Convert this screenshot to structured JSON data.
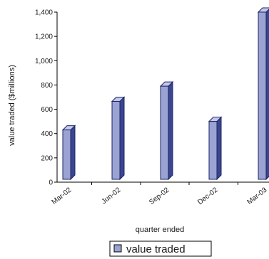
{
  "colors": {
    "bar_front": "#9aa3d2",
    "bar_side": "#3b4690",
    "bar_top": "#c4c9ea",
    "bar_edge": "#1c2466",
    "axis": "#000000",
    "gridline": "#000000"
  },
  "chart_data": {
    "type": "bar",
    "title": "",
    "xlabel": "quarter ended",
    "ylabel": "value traded ($millions)",
    "categories": [
      "Mar-02",
      "Jun-02",
      "Sep-02",
      "Dec-02",
      "Mar-03"
    ],
    "x_tick_labels": [
      "Mar-02",
      "Jun-02",
      "Sep-02",
      "Dec-02",
      "Mar-03"
    ],
    "y_tick_labels": [
      "0",
      "200",
      "400",
      "600",
      "800",
      "1,000",
      "1,200",
      "1,400"
    ],
    "y_ticks": [
      0,
      200,
      400,
      600,
      800,
      1000,
      1200,
      1400
    ],
    "ylim": [
      0,
      1400
    ],
    "grid": false,
    "legend_position": "bottom",
    "series": [
      {
        "name": "value traded",
        "values": [
          430,
          665,
          790,
          500,
          1400
        ]
      }
    ]
  }
}
